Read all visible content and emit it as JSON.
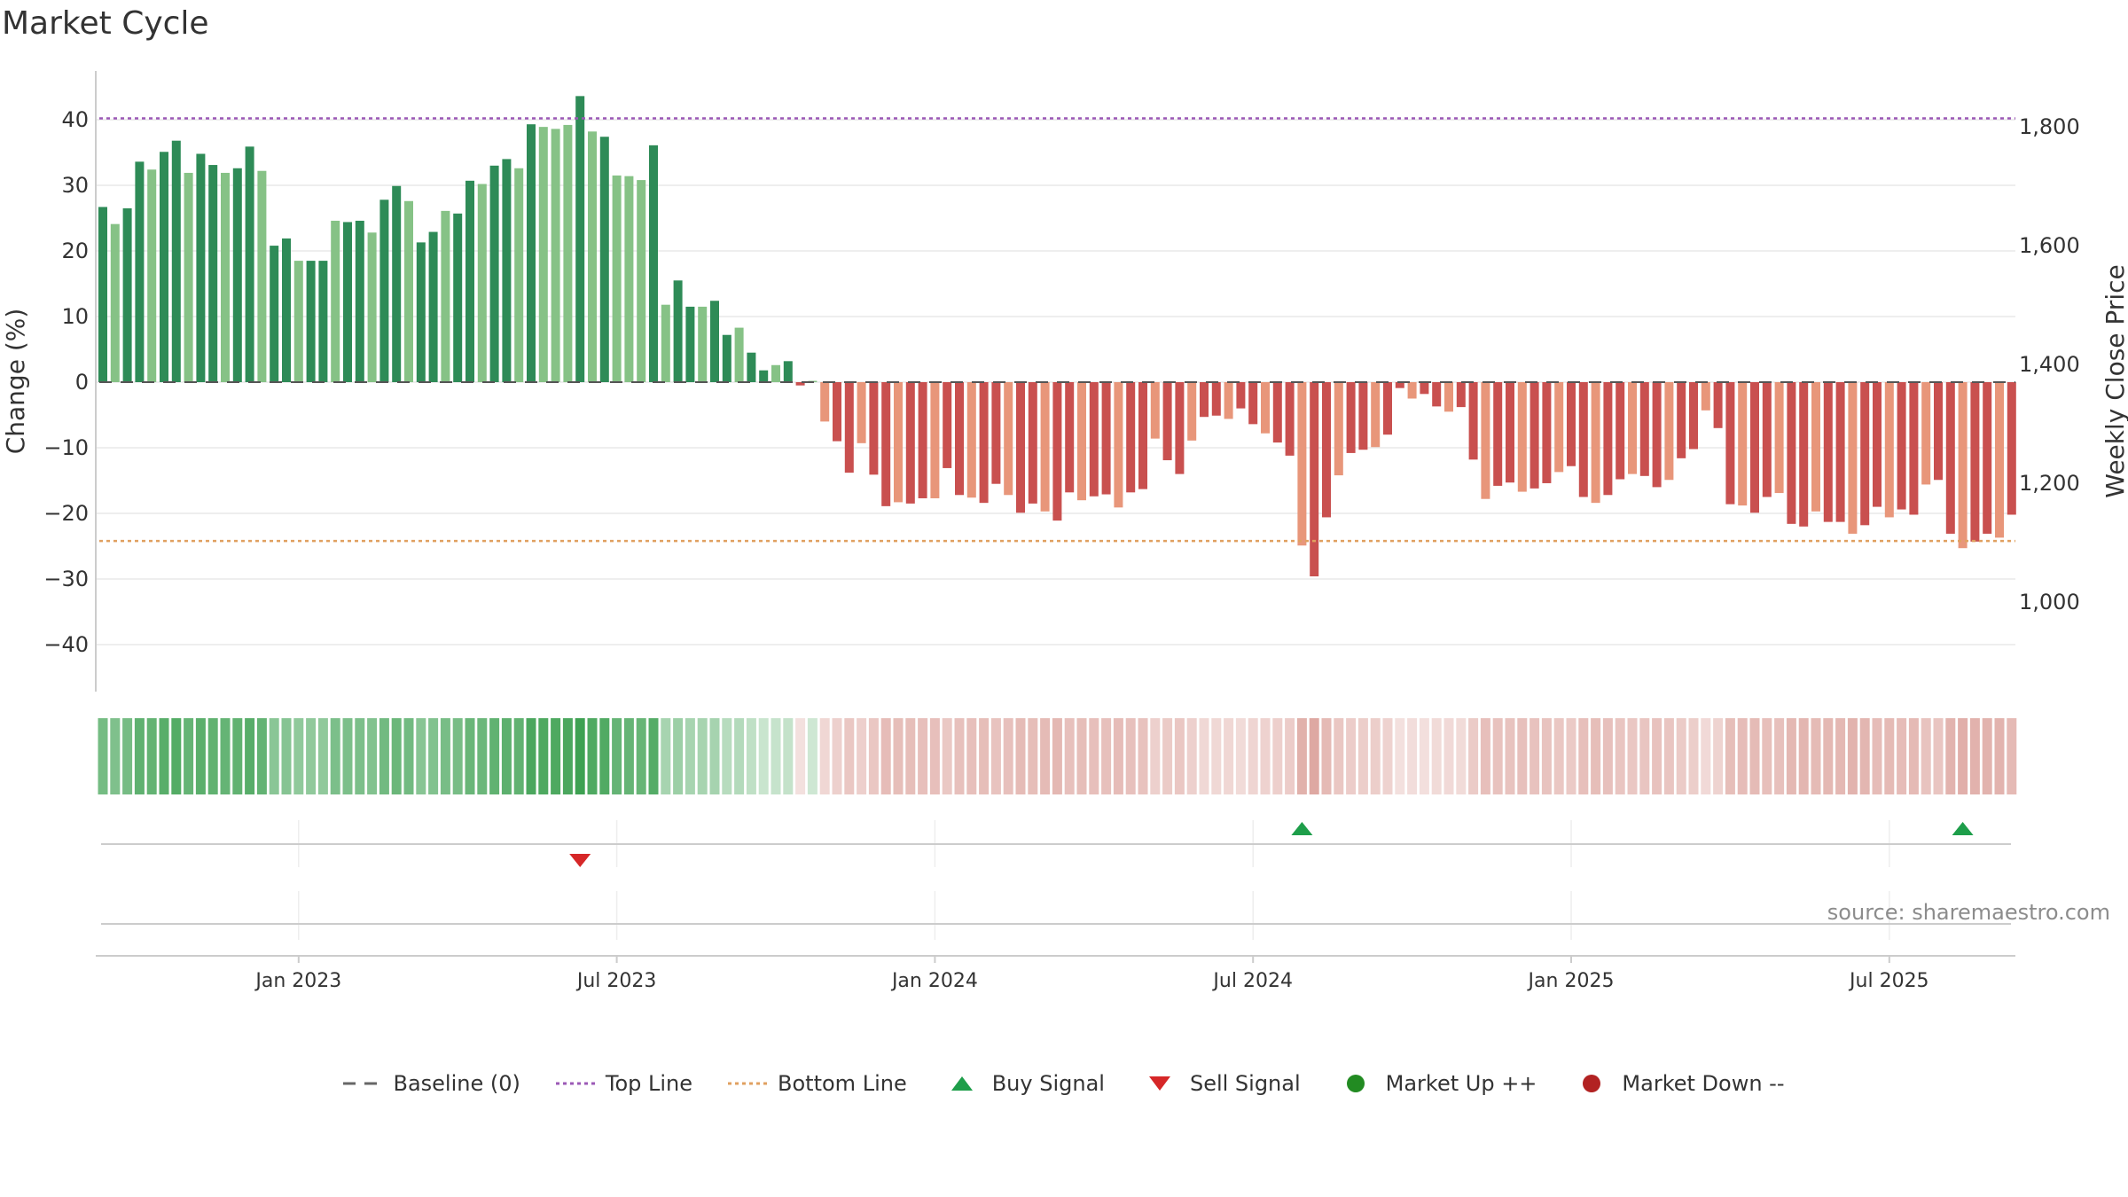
{
  "title": "Market Cycle",
  "source": "source: sharemaestro.com",
  "colors": {
    "up_dark": "#2e8b57",
    "up_light": "#86c286",
    "down_dark": "#c9504f",
    "down_light": "#e8967a",
    "top_line": "#9b59b6",
    "bottom_line": "#e0a060",
    "buy": "#1e9e4a",
    "sell": "#d62728",
    "market_up": "#228b22",
    "market_down": "#b22222"
  },
  "legend": [
    {
      "label": "Baseline (0)",
      "icon": "dash-line"
    },
    {
      "label": "Top Line",
      "icon": "dotted-purple-line"
    },
    {
      "label": "Bottom Line",
      "icon": "dotted-orange-line"
    },
    {
      "label": "Buy Signal",
      "icon": "triangle-up-green"
    },
    {
      "label": "Sell Signal",
      "icon": "triangle-down-red"
    },
    {
      "label": "Market Up ++",
      "icon": "circle-green"
    },
    {
      "label": "Market Down --",
      "icon": "circle-red"
    }
  ],
  "chart_data": {
    "type": "bar",
    "ylabel": "Change (%)",
    "y2label": "Weekly Close Price",
    "ylim": [
      -48,
      48
    ],
    "y_ticks": [
      40,
      30,
      20,
      10,
      0,
      -10,
      -20,
      -30,
      -40
    ],
    "y_tick_labels": [
      "40",
      "30",
      "20",
      "10",
      "0",
      "−10",
      "−20",
      "−30",
      "−40"
    ],
    "y2_ticks": [
      1800,
      1600,
      1400,
      1200,
      1000
    ],
    "y2_tick_labels": [
      "1,800",
      "1,600",
      "1,400",
      "1,200",
      "1,000"
    ],
    "x_tick_labels": [
      "Jan 2023",
      "Jul 2023",
      "Jan 2024",
      "Jul 2024",
      "Jan 2025",
      "Jul 2025"
    ],
    "x_tick_weeks": [
      16,
      42,
      68,
      94,
      120,
      146
    ],
    "top_line": 40.2,
    "bottom_line": -24.2,
    "grid": true,
    "legend_position": "bottom",
    "values": [
      26.7,
      24.1,
      26.5,
      33.6,
      32.4,
      35.1,
      36.8,
      31.9,
      34.8,
      33.1,
      31.9,
      32.6,
      35.9,
      32.2,
      20.8,
      21.9,
      18.5,
      18.5,
      18.5,
      24.6,
      24.4,
      24.6,
      22.8,
      27.8,
      29.9,
      27.6,
      21.3,
      22.9,
      26.1,
      25.7,
      30.7,
      30.2,
      33.0,
      34.0,
      32.6,
      39.3,
      38.9,
      38.6,
      39.2,
      43.6,
      38.2,
      37.4,
      31.5,
      31.4,
      30.8,
      36.1,
      11.8,
      15.5,
      11.5,
      11.5,
      12.4,
      7.2,
      8.3,
      4.5,
      1.8,
      2.6,
      3.2,
      -0.5,
      0.2,
      -6.0,
      -9.0,
      -13.8,
      -9.3,
      -14.1,
      -18.9,
      -18.3,
      -18.5,
      -17.7,
      -17.7,
      -13.1,
      -17.2,
      -17.6,
      -18.4,
      -15.5,
      -17.2,
      -19.9,
      -18.5,
      -19.7,
      -21.1,
      -16.8,
      -18.0,
      -17.4,
      -17.1,
      -19.1,
      -16.8,
      -16.3,
      -8.6,
      -11.9,
      -14.0,
      -8.9,
      -5.3,
      -5.1,
      -5.6,
      -4.0,
      -6.4,
      -7.8,
      -9.2,
      -11.2,
      -24.9,
      -29.6,
      -20.6,
      -14.2,
      -10.8,
      -10.3,
      -9.9,
      -8.0,
      -0.9,
      -2.5,
      -1.8,
      -3.7,
      -4.5,
      -3.8,
      -11.8,
      -17.8,
      -15.8,
      -15.3,
      -16.7,
      -16.2,
      -15.4,
      -13.7,
      -12.8,
      -17.5,
      -18.4,
      -17.2,
      -14.8,
      -14.0,
      -14.3,
      -16.0,
      -14.9,
      -11.6,
      -10.2,
      -4.3,
      -7.0,
      -18.6,
      -18.8,
      -19.9,
      -17.5,
      -16.9,
      -21.6,
      -22.0,
      -19.7,
      -21.3,
      -21.3,
      -23.1,
      -21.8,
      -19.0,
      -20.6,
      -19.4,
      -20.2,
      -15.6,
      -14.9,
      -23.1,
      -25.3,
      -24.3,
      -23.1,
      -23.7,
      -20.2
    ],
    "buy_signals": [
      98,
      152
    ],
    "sell_signals": [
      39
    ]
  }
}
